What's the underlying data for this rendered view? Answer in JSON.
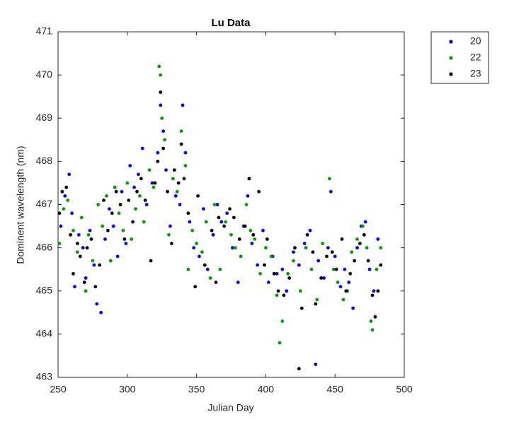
{
  "chart_data": {
    "type": "scatter",
    "title": "Lu Data",
    "x_label": "Julian Day",
    "y_label": "Dominent wavelength (nm)",
    "xlim": [
      250,
      500
    ],
    "xticks": [
      250,
      300,
      350,
      400,
      450,
      500
    ],
    "ylim": [
      463,
      471
    ],
    "yticks": [
      463,
      464,
      465,
      466,
      467,
      468,
      469,
      470,
      471
    ],
    "grid": false,
    "legend": "outside-right",
    "series": [
      {
        "name": "20",
        "color": "#0000ff",
        "x": [
          252,
          255,
          258,
          260,
          262,
          265,
          268,
          270,
          273,
          276,
          278,
          281,
          284,
          287,
          290,
          293,
          296,
          299,
          302,
          305,
          308,
          311,
          314,
          318,
          322,
          324,
          326,
          328,
          331,
          335,
          338,
          340,
          342,
          345,
          348,
          352,
          355,
          358,
          362,
          365,
          368,
          372,
          376,
          380,
          384,
          387,
          390,
          394,
          398,
          402,
          405,
          408,
          412,
          415,
          420,
          424,
          428,
          432,
          436,
          438,
          442,
          445,
          447,
          450,
          454,
          457,
          460,
          463,
          466,
          469,
          472,
          475,
          478,
          481
        ],
        "values": [
          466.5,
          467.2,
          467.7,
          466.8,
          465.1,
          466.3,
          466.0,
          465.3,
          466.4,
          465.6,
          464.7,
          464.5,
          466.2,
          466.9,
          466.5,
          465.8,
          467.3,
          466.1,
          467.9,
          467.4,
          467.7,
          468.3,
          467.0,
          467.5,
          468.2,
          469.3,
          468.7,
          467.8,
          466.5,
          467.2,
          467.0,
          469.3,
          468.2,
          466.6,
          466.0,
          465.8,
          466.9,
          465.5,
          466.3,
          467.0,
          466.6,
          466.8,
          466.0,
          465.2,
          466.5,
          467.2,
          466.1,
          465.6,
          466.4,
          465.2,
          465.8,
          465.4,
          465.5,
          465.0,
          465.9,
          465.6,
          466.1,
          466.4,
          463.3,
          465.7,
          465.3,
          466.0,
          467.3,
          465.8,
          465.1,
          465.5,
          465.2,
          464.6,
          466.0,
          466.5,
          466.6,
          465.5,
          465.0,
          466.2
        ]
      },
      {
        "name": "22",
        "color": "#00a000",
        "x": [
          251,
          254,
          257,
          261,
          264,
          267,
          270,
          272,
          275,
          279,
          282,
          285,
          288,
          291,
          294,
          297,
          300,
          303,
          306,
          309,
          312,
          316,
          319,
          323,
          324,
          325,
          327,
          330,
          333,
          336,
          339,
          342,
          344,
          347,
          350,
          354,
          357,
          360,
          363,
          367,
          371,
          375,
          378,
          382,
          386,
          389,
          392,
          396,
          400,
          404,
          408,
          410,
          412,
          416,
          420,
          425,
          429,
          433,
          437,
          441,
          446,
          449,
          452,
          456,
          459,
          462,
          466,
          470,
          473,
          476,
          477,
          480,
          483
        ],
        "values": [
          466.1,
          466.9,
          467.1,
          466.4,
          465.9,
          466.7,
          465.0,
          466.3,
          465.7,
          467.0,
          466.5,
          467.2,
          465.7,
          467.4,
          466.8,
          466.4,
          467.5,
          466.2,
          466.9,
          467.2,
          466.6,
          467.8,
          467.4,
          470.2,
          470.0,
          469.0,
          468.5,
          466.3,
          467.6,
          467.3,
          468.7,
          467.9,
          465.5,
          466.4,
          466.1,
          465.9,
          466.6,
          465.3,
          467.0,
          465.5,
          466.6,
          466.3,
          466.0,
          465.8,
          467.0,
          466.4,
          466.2,
          465.4,
          466.0,
          465.8,
          464.9,
          463.8,
          464.3,
          465.4,
          465.7,
          465.0,
          466.0,
          465.5,
          464.8,
          466.1,
          467.6,
          465.5,
          465.2,
          464.8,
          465.0,
          465.9,
          466.2,
          466.5,
          466.0,
          464.3,
          464.1,
          465.5,
          466.0
        ]
      },
      {
        "name": "23",
        "color": "#000000",
        "x": [
          251,
          253,
          256,
          259,
          261,
          264,
          266,
          269,
          271,
          274,
          277,
          280,
          283,
          286,
          289,
          292,
          295,
          298,
          301,
          304,
          307,
          310,
          313,
          317,
          320,
          322,
          324,
          326,
          329,
          332,
          334,
          337,
          339,
          341,
          344,
          349,
          351,
          356,
          361,
          364,
          366,
          370,
          374,
          377,
          381,
          385,
          388,
          391,
          395,
          399,
          401,
          406,
          409,
          413,
          417,
          421,
          424,
          426,
          430,
          434,
          436,
          440,
          444,
          448,
          451,
          455,
          458,
          461,
          464,
          468,
          471,
          474,
          477,
          479,
          481,
          483
        ],
        "values": [
          466.8,
          467.3,
          467.4,
          466.3,
          465.4,
          466.1,
          465.8,
          465.2,
          466.0,
          466.2,
          465.1,
          465.6,
          467.1,
          466.4,
          466.8,
          467.3,
          467.0,
          466.2,
          467.1,
          466.6,
          467.3,
          467.6,
          467.1,
          465.7,
          467.5,
          468.0,
          469.6,
          468.3,
          467.3,
          466.1,
          467.8,
          467.5,
          468.4,
          467.6,
          466.8,
          465.1,
          467.2,
          465.6,
          466.4,
          465.2,
          466.7,
          466.5,
          466.9,
          466.7,
          466.2,
          466.5,
          467.6,
          466.3,
          467.3,
          465.6,
          466.2,
          465.4,
          465.0,
          464.9,
          465.3,
          466.0,
          463.2,
          464.6,
          466.3,
          465.9,
          464.7,
          465.3,
          465.8,
          465.9,
          465.5,
          466.2,
          465.0,
          465.4,
          465.7,
          466.1,
          466.3,
          465.7,
          464.9,
          464.4,
          465.0,
          465.6
        ]
      }
    ]
  }
}
